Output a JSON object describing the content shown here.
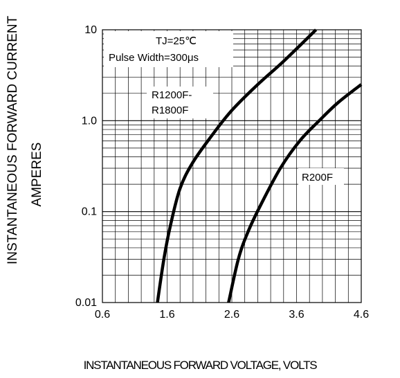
{
  "chart_data": {
    "type": "line",
    "xlabel": "INSTANTANEOUS FORWARD VOLTAGE, VOLTS",
    "ylabel_lines": [
      "INSTANTANEOUS FORWARD CURRENT",
      "AMPERES"
    ],
    "x_ticks": [
      "0.6",
      "1.6",
      "2.6",
      "3.6",
      "4.6"
    ],
    "x_tick_values": [
      0.6,
      1.6,
      2.6,
      3.6,
      4.6
    ],
    "y_ticks": [
      "0.01",
      "0.1",
      "1.0",
      "10"
    ],
    "y_tick_values": [
      0.01,
      0.1,
      1.0,
      10
    ],
    "xlim": [
      0.6,
      4.6
    ],
    "ylim": [
      0.01,
      10
    ],
    "y_scale": "log",
    "grid": true,
    "annotations": {
      "condition_line1": "TJ=25℃",
      "condition_line2": "Pulse Width=300μs"
    },
    "series": [
      {
        "name": "R1200F-\nR1800F",
        "label_lines": [
          "R1200F-",
          "R1800F"
        ],
        "points": [
          [
            1.45,
            0.01
          ],
          [
            1.55,
            0.03
          ],
          [
            1.65,
            0.07
          ],
          [
            1.8,
            0.18
          ],
          [
            2.0,
            0.35
          ],
          [
            2.3,
            0.7
          ],
          [
            2.6,
            1.3
          ],
          [
            3.0,
            2.5
          ],
          [
            3.4,
            4.5
          ],
          [
            3.9,
            10
          ]
        ]
      },
      {
        "name": "R200F",
        "label_lines": [
          "R200F"
        ],
        "points": [
          [
            2.55,
            0.01
          ],
          [
            2.7,
            0.03
          ],
          [
            2.85,
            0.06
          ],
          [
            3.05,
            0.12
          ],
          [
            3.35,
            0.3
          ],
          [
            3.65,
            0.6
          ],
          [
            3.95,
            1.0
          ],
          [
            4.25,
            1.6
          ],
          [
            4.6,
            2.5
          ]
        ]
      }
    ]
  }
}
